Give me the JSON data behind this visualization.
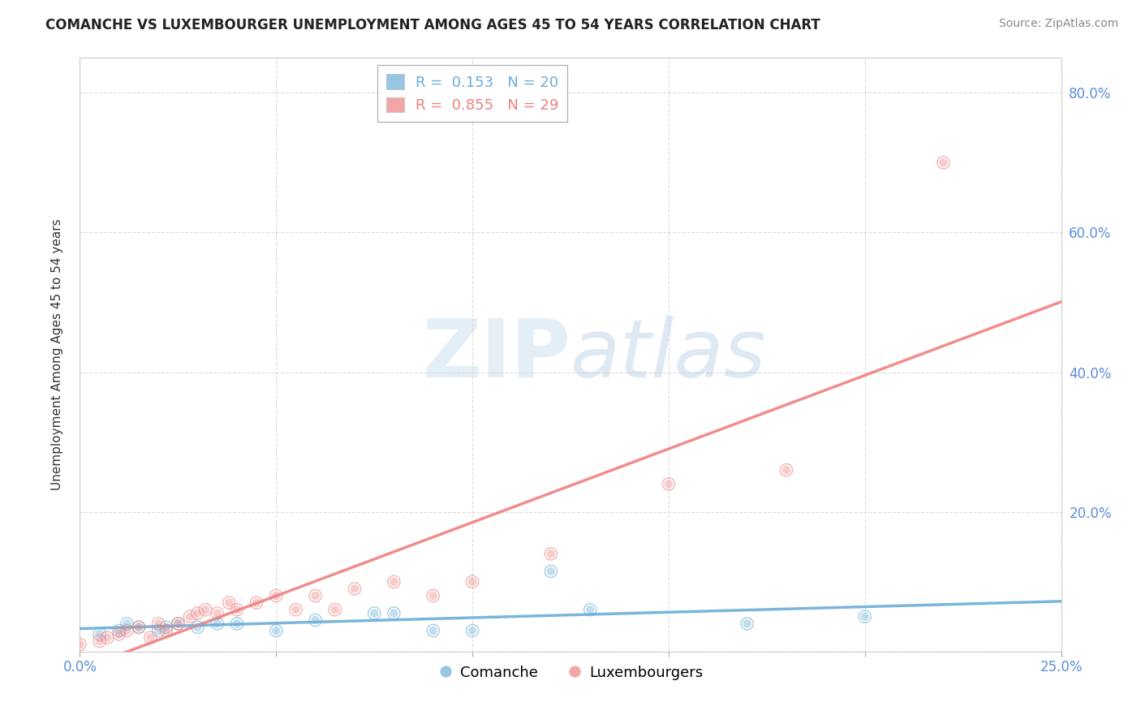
{
  "title": "COMANCHE VS LUXEMBOURGER UNEMPLOYMENT AMONG AGES 45 TO 54 YEARS CORRELATION CHART",
  "source": "Source: ZipAtlas.com",
  "ylabel": "Unemployment Among Ages 45 to 54 years",
  "xlim": [
    0.0,
    0.25
  ],
  "ylim": [
    0.0,
    0.85
  ],
  "xticks": [
    0.0,
    0.05,
    0.1,
    0.15,
    0.2,
    0.25
  ],
  "xticklabels": [
    "0.0%",
    "",
    "",
    "",
    "",
    "25.0%"
  ],
  "yticks": [
    0.0,
    0.2,
    0.4,
    0.6,
    0.8
  ],
  "yticklabels_right": [
    "",
    "20.0%",
    "40.0%",
    "60.0%",
    "80.0%"
  ],
  "comanche_color": "#6baed6",
  "luxembourger_color": "#f08080",
  "comanche_R": 0.153,
  "comanche_N": 20,
  "luxembourger_R": 0.855,
  "luxembourger_N": 29,
  "comanche_x": [
    0.005,
    0.01,
    0.012,
    0.015,
    0.02,
    0.022,
    0.025,
    0.03,
    0.035,
    0.04,
    0.05,
    0.06,
    0.075,
    0.08,
    0.09,
    0.1,
    0.12,
    0.13,
    0.17,
    0.2
  ],
  "comanche_y": [
    0.025,
    0.03,
    0.04,
    0.035,
    0.03,
    0.035,
    0.04,
    0.035,
    0.04,
    0.04,
    0.03,
    0.045,
    0.055,
    0.055,
    0.03,
    0.03,
    0.115,
    0.06,
    0.04,
    0.05
  ],
  "luxembourger_x": [
    0.0,
    0.005,
    0.007,
    0.01,
    0.012,
    0.015,
    0.018,
    0.02,
    0.022,
    0.025,
    0.028,
    0.03,
    0.032,
    0.035,
    0.038,
    0.04,
    0.045,
    0.05,
    0.055,
    0.06,
    0.065,
    0.07,
    0.08,
    0.09,
    0.1,
    0.12,
    0.15,
    0.18,
    0.22
  ],
  "luxembourger_y": [
    0.01,
    0.015,
    0.02,
    0.025,
    0.03,
    0.035,
    0.02,
    0.04,
    0.03,
    0.04,
    0.05,
    0.055,
    0.06,
    0.055,
    0.07,
    0.06,
    0.07,
    0.08,
    0.06,
    0.08,
    0.06,
    0.09,
    0.1,
    0.08,
    0.1,
    0.14,
    0.24,
    0.26,
    0.7
  ],
  "watermark_zip": "ZIP",
  "watermark_atlas": "atlas",
  "background_color": "#ffffff",
  "grid_color": "#dddddd",
  "grid_style": "--",
  "tick_color": "#5b8dd9"
}
